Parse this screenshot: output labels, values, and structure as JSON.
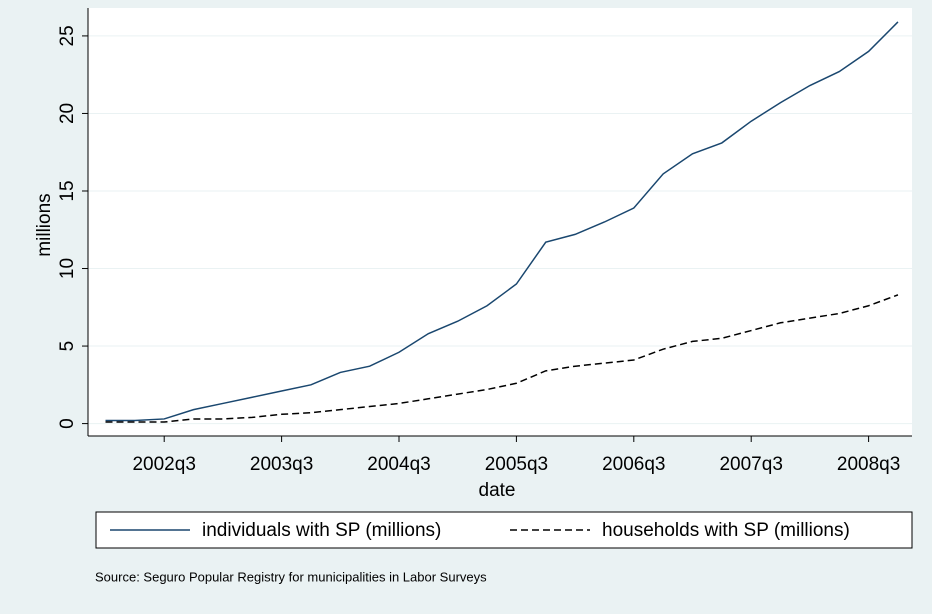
{
  "chart_data": {
    "type": "line",
    "x_label": "date",
    "y_label": "millions",
    "note": "Source: Seguro Popular Registry for municipalities in Labor Surveys",
    "x": [
      "2002q1",
      "2002q2",
      "2002q3",
      "2002q4",
      "2003q1",
      "2003q2",
      "2003q3",
      "2003q4",
      "2004q1",
      "2004q2",
      "2004q3",
      "2004q4",
      "2005q1",
      "2005q2",
      "2005q3",
      "2005q4",
      "2006q1",
      "2006q2",
      "2006q3",
      "2006q4",
      "2007q1",
      "2007q2",
      "2007q3",
      "2007q4",
      "2008q1",
      "2008q2",
      "2008q3",
      "2008q4"
    ],
    "xticks": [
      "2002q3",
      "2003q3",
      "2004q3",
      "2005q3",
      "2006q3",
      "2007q3",
      "2008q3"
    ],
    "ylim": [
      -0.8,
      26.8
    ],
    "yticks": [
      0,
      5,
      10,
      15,
      20,
      25
    ],
    "grid": true,
    "series": [
      {
        "name": "individuals with SP (millions)",
        "color": "#1a476f",
        "dash": "solid",
        "values": [
          0.2,
          0.2,
          0.3,
          0.9,
          1.3,
          1.7,
          2.1,
          2.5,
          3.3,
          3.7,
          4.6,
          5.8,
          6.6,
          7.6,
          9.0,
          11.7,
          12.2,
          13.0,
          13.9,
          16.1,
          17.4,
          18.1,
          19.5,
          20.7,
          21.8,
          22.7,
          24.0,
          25.9
        ]
      },
      {
        "name": "households with SP (millions)",
        "color": "#000000",
        "dash": "dashed",
        "values": [
          0.1,
          0.1,
          0.1,
          0.3,
          0.3,
          0.4,
          0.6,
          0.7,
          0.9,
          1.1,
          1.3,
          1.6,
          1.9,
          2.2,
          2.6,
          3.4,
          3.7,
          3.9,
          4.1,
          4.8,
          5.3,
          5.5,
          6.0,
          6.5,
          6.8,
          7.1,
          7.6,
          8.3
        ]
      }
    ]
  }
}
